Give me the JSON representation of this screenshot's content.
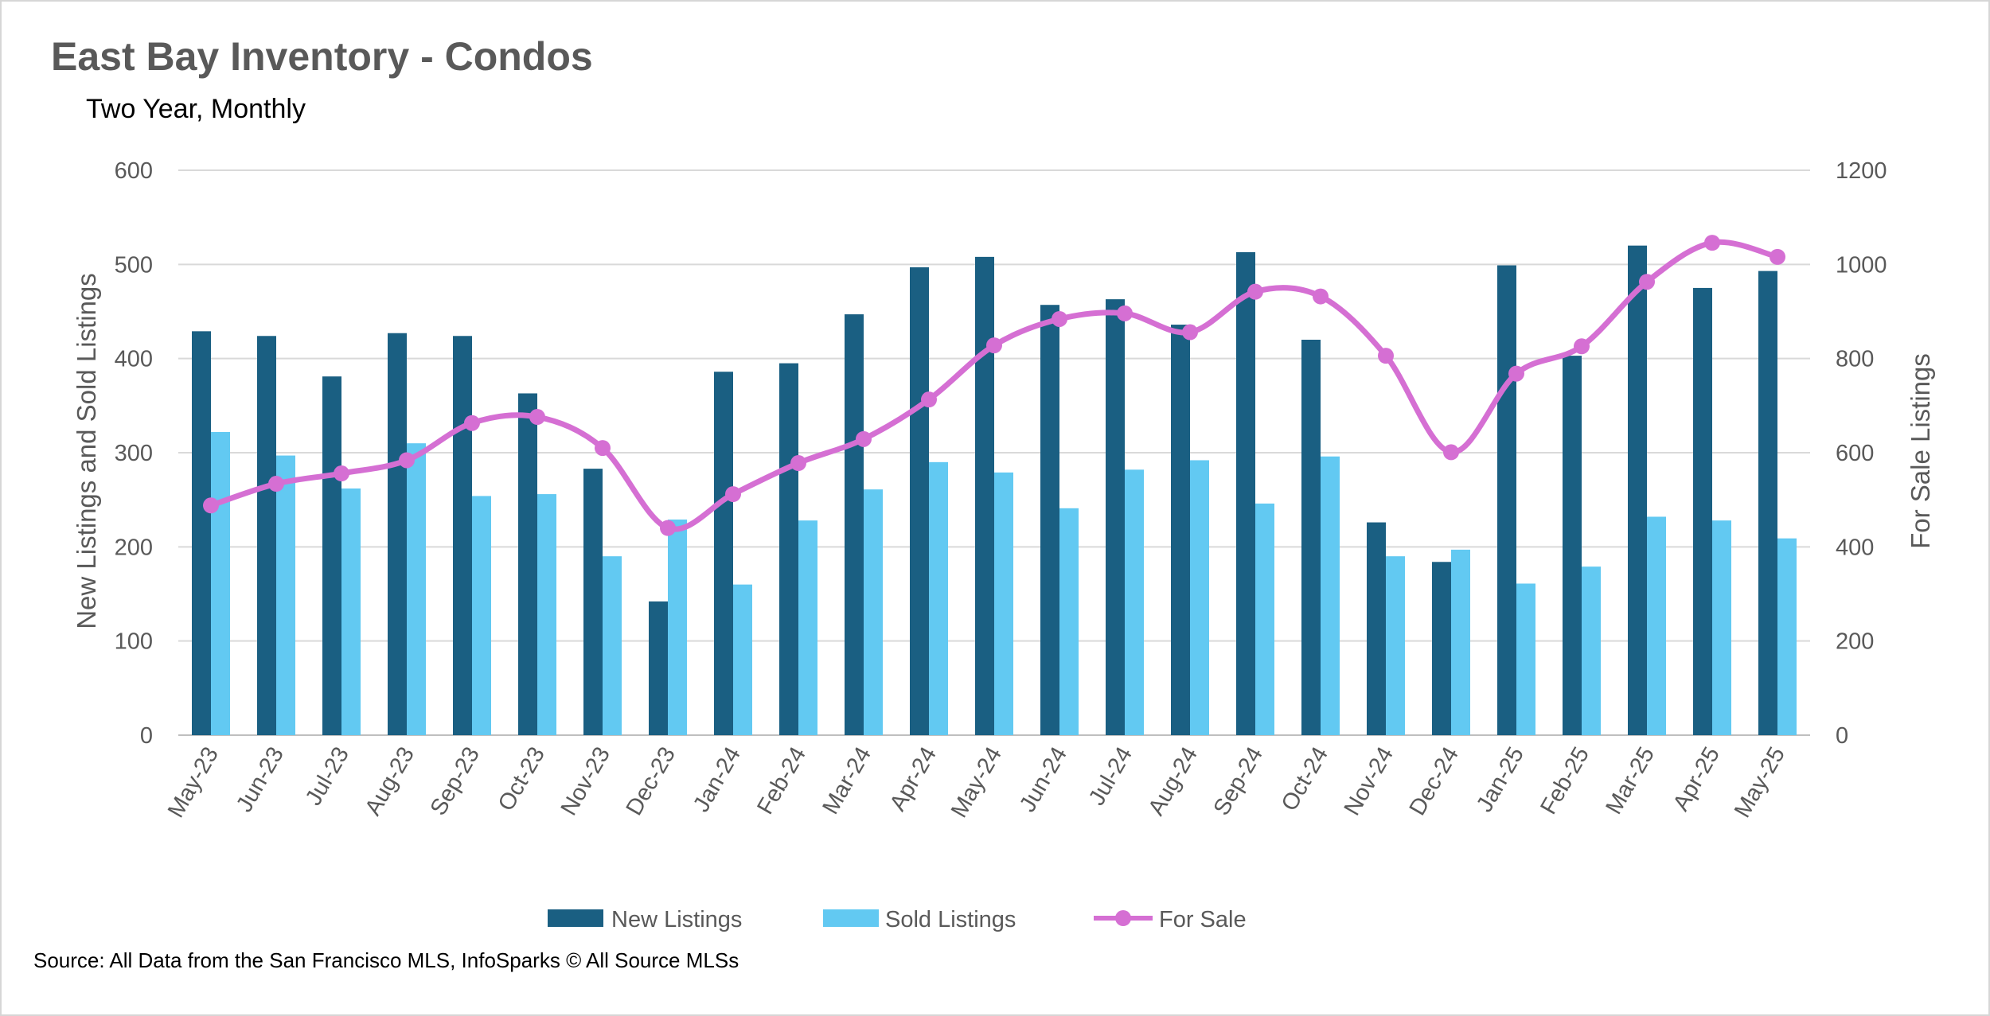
{
  "chart_data": {
    "type": "bar",
    "title": "East Bay Inventory - Condos",
    "subtitle": "Two Year, Monthly",
    "ylabel": "New Listings and Sold Listings",
    "y2label": "For Sale Listings",
    "xlabel": "",
    "ylim": [
      0,
      600
    ],
    "y2lim": [
      0,
      1200
    ],
    "yticks": [
      "0",
      "100",
      "200",
      "300",
      "400",
      "500",
      "600"
    ],
    "y2ticks": [
      "0",
      "200",
      "400",
      "600",
      "800",
      "1000",
      "1200"
    ],
    "grid": true,
    "legend_position": "bottom",
    "categories": [
      "May-23",
      "Jun-23",
      "Jul-23",
      "Aug-23",
      "Sep-23",
      "Oct-23",
      "Nov-23",
      "Dec-23",
      "Jan-24",
      "Feb-24",
      "Mar-24",
      "Apr-24",
      "May-24",
      "Jun-24",
      "Jul-24",
      "Aug-24",
      "Sep-24",
      "Oct-24",
      "Nov-24",
      "Dec-24",
      "Jan-25",
      "Feb-25",
      "Mar-25",
      "Apr-25",
      "May-25"
    ],
    "series": [
      {
        "name": "New Listings",
        "kind": "bar",
        "axis": "left",
        "color": "#1A5F82",
        "values": [
          429,
          424,
          381,
          427,
          424,
          363,
          283,
          142,
          386,
          395,
          447,
          497,
          508,
          457,
          463,
          436,
          513,
          420,
          226,
          184,
          499,
          403,
          520,
          475,
          493
        ]
      },
      {
        "name": "Sold Listings",
        "kind": "bar",
        "axis": "left",
        "color": "#62C9F2",
        "values": [
          322,
          297,
          262,
          310,
          254,
          256,
          190,
          229,
          160,
          228,
          261,
          290,
          279,
          241,
          282,
          292,
          246,
          296,
          190,
          197,
          161,
          179,
          232,
          228,
          209
        ]
      },
      {
        "name": "For Sale",
        "kind": "line",
        "axis": "right",
        "color": "#D56FD3",
        "values": [
          488,
          534,
          556,
          584,
          663,
          676,
          610,
          440,
          512,
          578,
          629,
          713,
          828,
          884,
          896,
          856,
          942,
          932,
          806,
          601,
          768,
          826,
          963,
          1046,
          1016
        ]
      }
    ],
    "source": "Source: All Data from the San Francisco MLS, InfoSparks © All Source MLSs"
  }
}
